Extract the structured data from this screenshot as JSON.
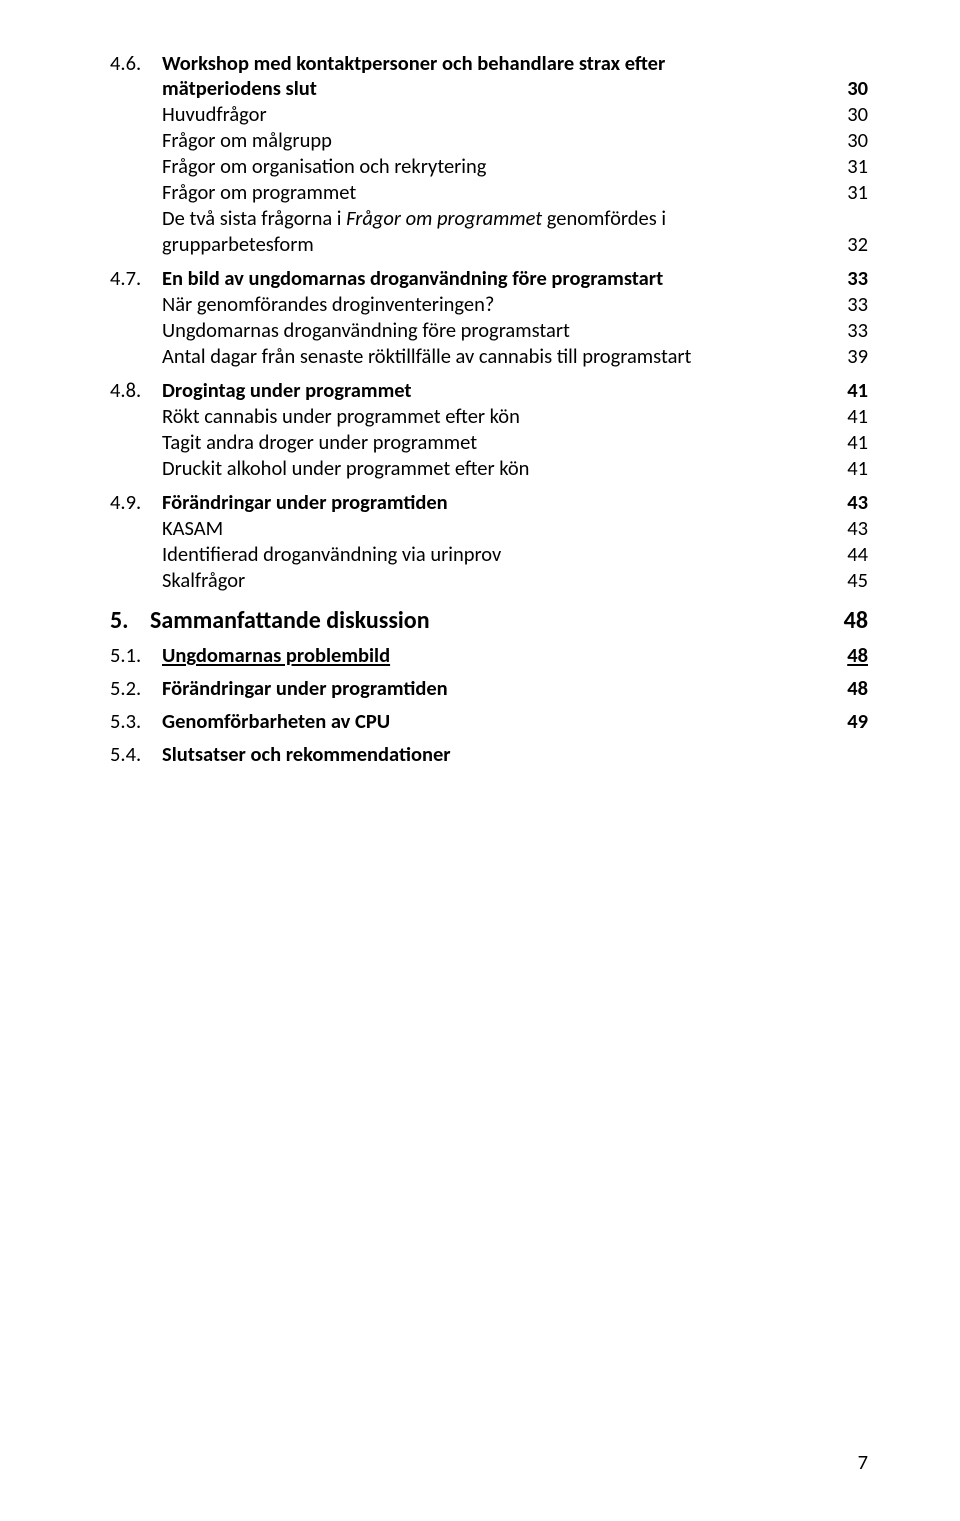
{
  "section46": {
    "num": "4.6.",
    "title_l1": "Workshop med kontaktpersoner och behandlare strax efter",
    "title_l2": "mätperiodens slut",
    "page": "30",
    "items": [
      {
        "label": "Huvudfrågor",
        "page": "30"
      },
      {
        "label": "Frågor om målgrupp",
        "page": "30"
      },
      {
        "label": "Frågor om organisation och rekrytering",
        "page": "31"
      },
      {
        "label": "Frågor om programmet",
        "page": "31"
      }
    ],
    "note": {
      "prefix": "De två sista frågorna i ",
      "ital": "Frågor om programmet",
      "suffix": " genomfördes i",
      "line2": "grupparbetesform",
      "page": "32"
    }
  },
  "section47": {
    "num": "4.7.",
    "title": "En bild av ungdomarnas droganvändning före programstart",
    "page": "33",
    "items": [
      {
        "label": "När genomförandes droginventeringen?",
        "page": "33"
      },
      {
        "label": "Ungdomarnas droganvändning före programstart",
        "page": "33"
      },
      {
        "label": "Antal dagar från senaste röktillfälle av cannabis till programstart",
        "page": "39"
      }
    ]
  },
  "section48": {
    "num": "4.8.",
    "title": "Drogintag under programmet",
    "page": "41",
    "items": [
      {
        "label": "Rökt cannabis under programmet efter kön",
        "page": "41"
      },
      {
        "label": "Tagit andra droger under programmet",
        "page": "41"
      },
      {
        "label": "Druckit alkohol under programmet efter kön",
        "page": "41"
      }
    ]
  },
  "section49": {
    "num": "4.9.",
    "title": "Förändringar under programtiden",
    "page": "43",
    "items": [
      {
        "label": "KASAM",
        "page": "43"
      },
      {
        "label": "Identifierad droganvändning via urinprov",
        "page": "44"
      },
      {
        "label": "Skalfrågor",
        "page": "45"
      }
    ]
  },
  "section5": {
    "num": "5.",
    "title": "Sammanfattande diskussion",
    "page": "48",
    "subs": [
      {
        "num": "5.1.",
        "label": "Ungdomarnas problembild",
        "page": "48",
        "underline": true
      },
      {
        "num": "5.2.",
        "label": "Förändringar under programtiden",
        "page": "48",
        "underline": false
      },
      {
        "num": "5.3.",
        "label": "Genomförbarheten av CPU",
        "page": "49",
        "underline": false
      },
      {
        "num": "5.4.",
        "label": "Slutsatser och rekommendationer",
        "page": "",
        "underline": false
      }
    ]
  },
  "footer_page": "7"
}
